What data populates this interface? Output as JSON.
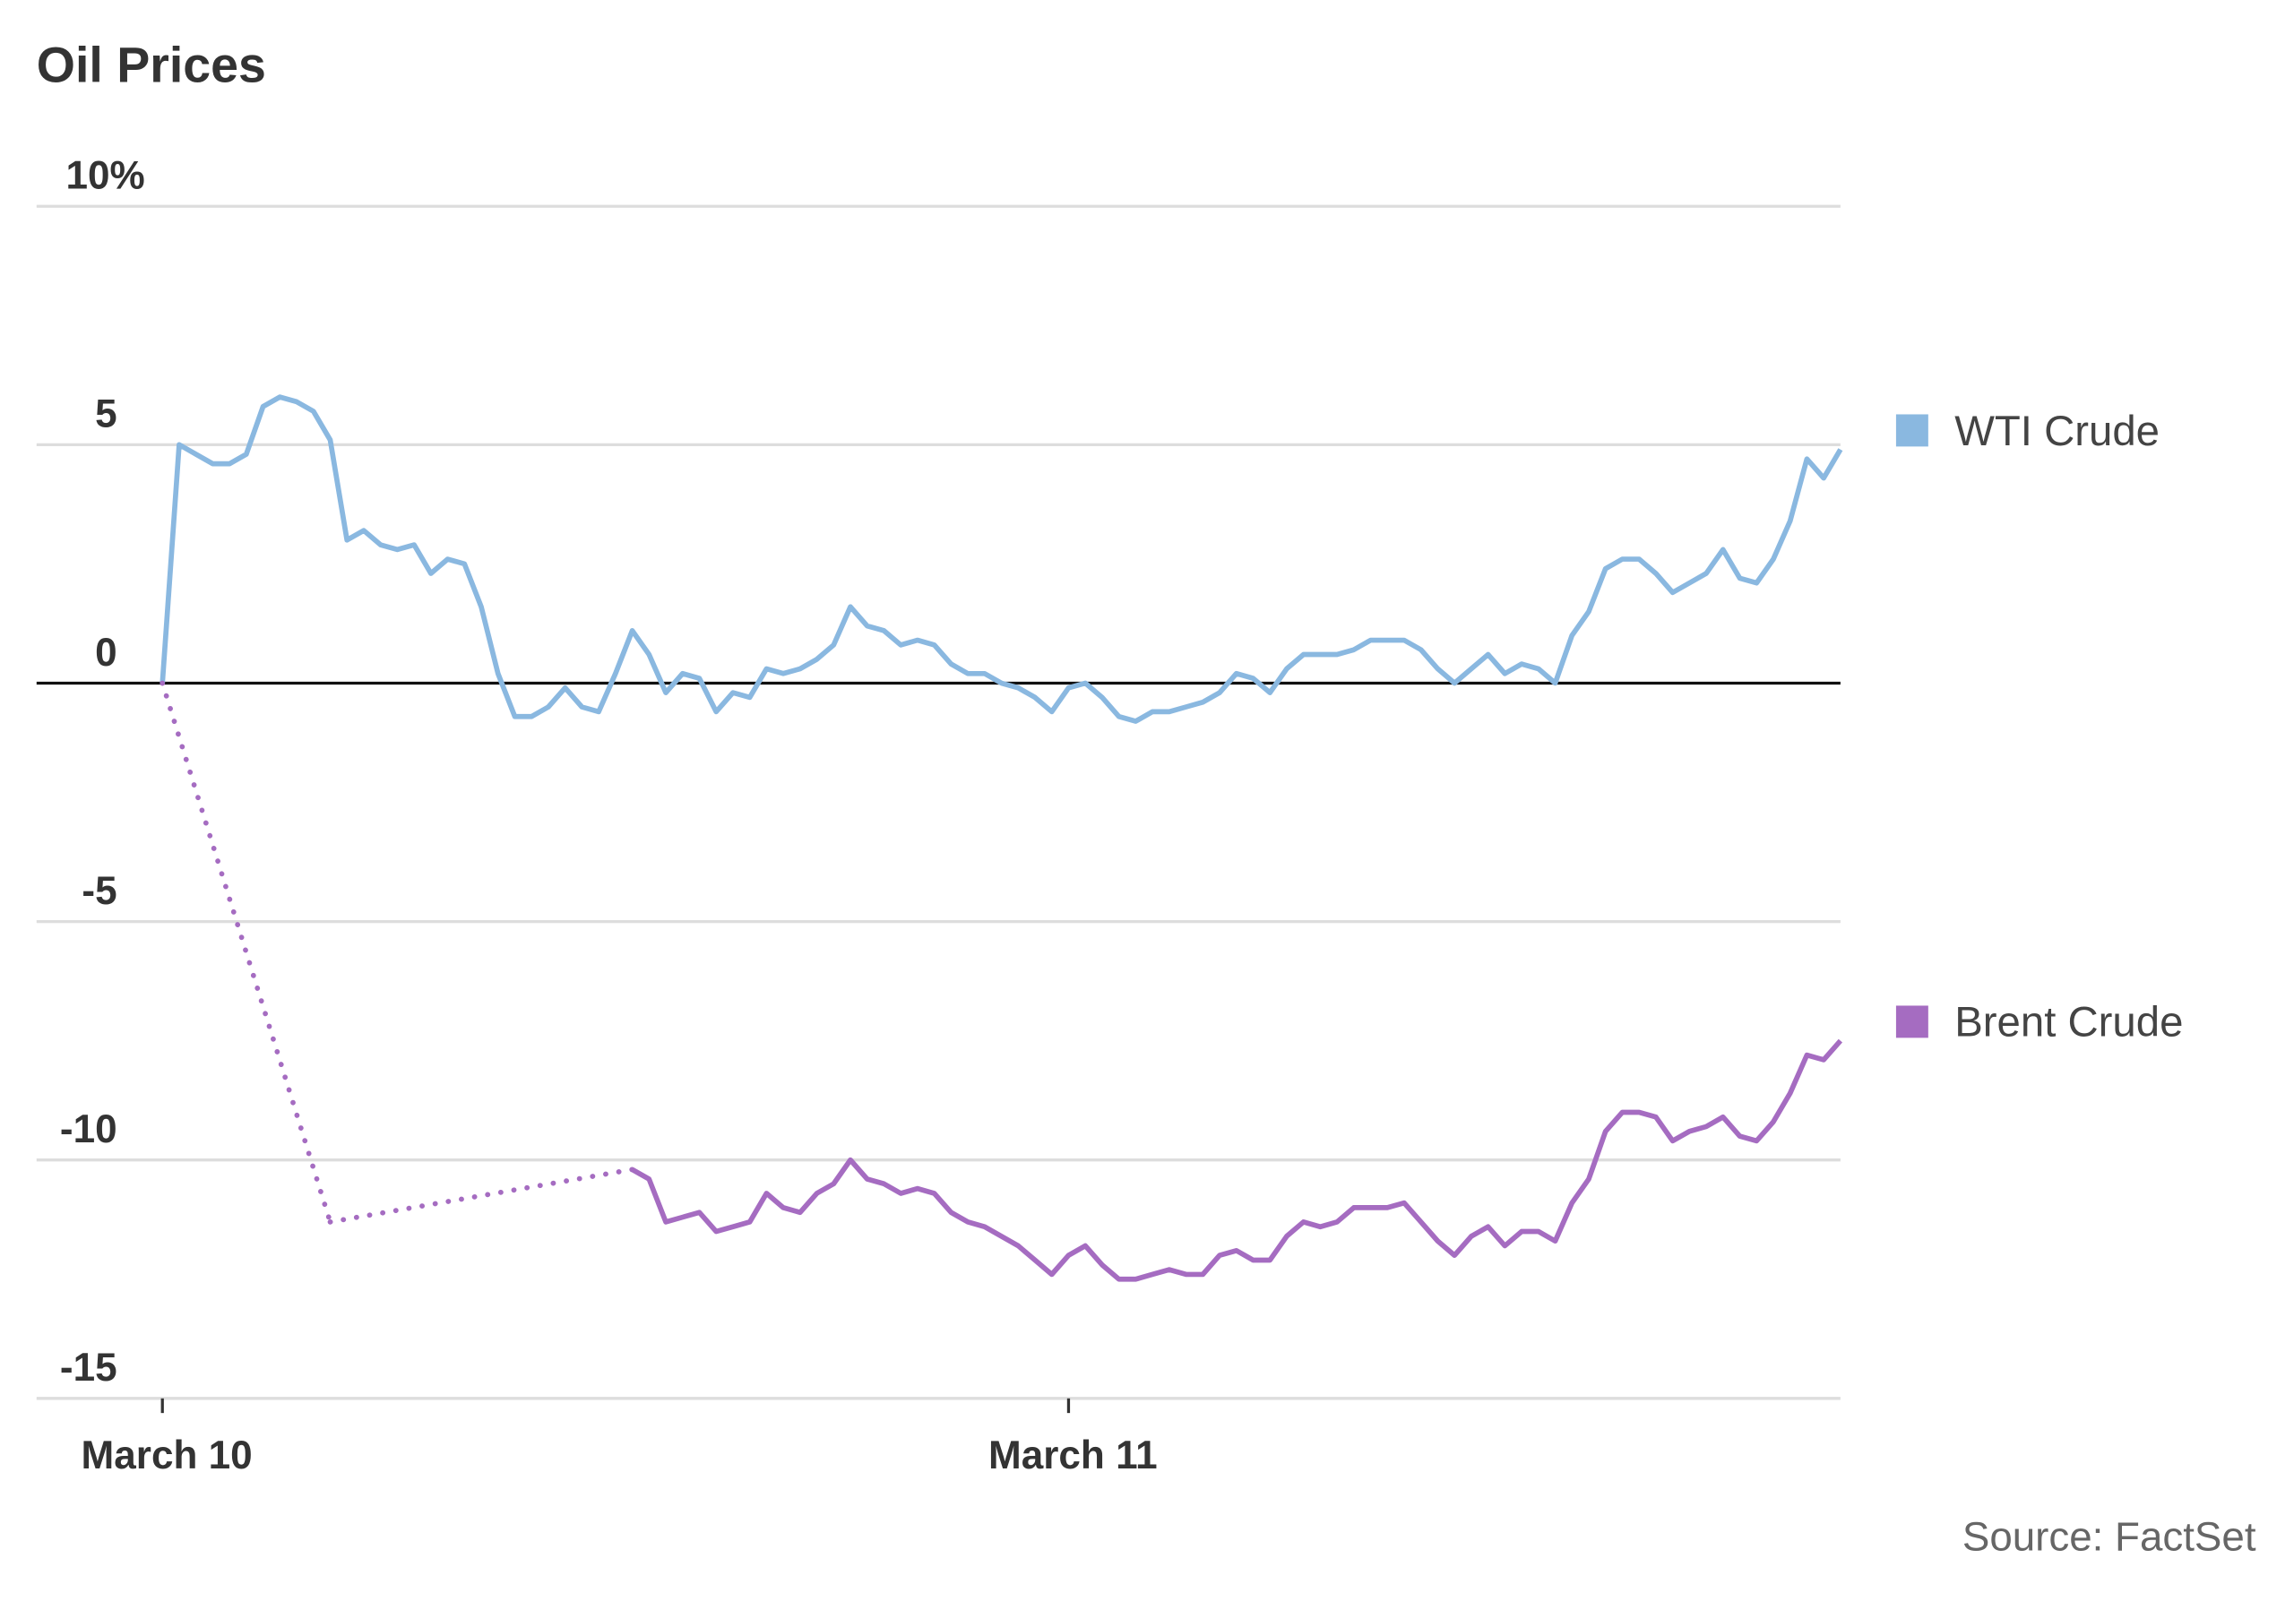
{
  "chart_data": {
    "type": "line",
    "title": "Oil Prices",
    "source": "Source: FactSet",
    "categories": [
      "March 10",
      null,
      null,
      null,
      null,
      null,
      null,
      null,
      null,
      null,
      null,
      null,
      null,
      null,
      null,
      null,
      null,
      null,
      null,
      null,
      null,
      null,
      null,
      null,
      null,
      null,
      null,
      null,
      null,
      null,
      null,
      null,
      null,
      null,
      null,
      null,
      null,
      null,
      null,
      null,
      null,
      null,
      null,
      null,
      null,
      null,
      null,
      null,
      null,
      null,
      null,
      null,
      null,
      null,
      "March 11",
      null,
      null,
      null,
      null,
      null,
      null,
      null,
      null,
      null,
      null,
      null,
      null,
      null,
      null,
      null,
      null,
      null,
      null,
      null,
      null,
      null,
      null,
      null,
      null,
      null,
      null,
      null,
      null,
      null,
      null,
      null,
      null,
      null,
      null,
      null,
      null,
      null,
      null,
      null,
      null,
      null,
      null,
      null,
      null,
      null,
      null
    ],
    "series": [
      {
        "name": "WTI Crude",
        "color": "#8ab8e0",
        "values": [
          0,
          5.0,
          4.8,
          4.6,
          4.6,
          4.8,
          5.8,
          6.0,
          5.9,
          5.7,
          5.1,
          3.0,
          3.2,
          2.9,
          2.8,
          2.9,
          2.3,
          2.6,
          2.5,
          1.6,
          0.2,
          -0.7,
          -0.7,
          -0.5,
          -0.1,
          -0.5,
          -0.6,
          0.2,
          1.1,
          0.6,
          -0.2,
          0.2,
          0.1,
          -0.6,
          -0.2,
          -0.3,
          0.3,
          0.2,
          0.3,
          0.5,
          0.8,
          1.6,
          1.2,
          1.1,
          0.8,
          0.9,
          0.8,
          0.4,
          0.2,
          0.2,
          0.0,
          -0.1,
          -0.3,
          -0.6,
          -0.1,
          0.0,
          -0.3,
          -0.7,
          -0.8,
          -0.6,
          -0.6,
          -0.5,
          -0.4,
          -0.2,
          0.2,
          0.1,
          -0.2,
          0.3,
          0.6,
          0.6,
          0.6,
          0.7,
          0.9,
          0.9,
          0.9,
          0.7,
          0.3,
          0.0,
          0.3,
          0.6,
          0.2,
          0.4,
          0.3,
          0.0,
          1.0,
          1.5,
          2.4,
          2.6,
          2.6,
          2.3,
          1.9,
          2.1,
          2.3,
          2.8,
          2.2,
          2.1,
          2.6,
          3.4,
          4.7,
          4.3,
          4.9
        ]
      },
      {
        "name": "Brent Crude",
        "color": "#a56cc1",
        "values": [
          0,
          null,
          null,
          null,
          null,
          null,
          null,
          null,
          null,
          null,
          -11.3,
          null,
          null,
          null,
          null,
          null,
          null,
          null,
          null,
          null,
          null,
          null,
          null,
          null,
          null,
          null,
          null,
          null,
          -10.2,
          -10.4,
          -11.3,
          -11.2,
          -11.1,
          -11.5,
          -11.4,
          -11.3,
          -10.7,
          -11.0,
          -11.1,
          -10.7,
          -10.5,
          -10.0,
          -10.4,
          -10.5,
          -10.7,
          -10.6,
          -10.7,
          -11.1,
          -11.3,
          -11.4,
          -11.6,
          -11.8,
          -12.1,
          -12.4,
          -12.0,
          -11.8,
          -12.2,
          -12.5,
          -12.5,
          -12.4,
          -12.3,
          -12.4,
          -12.4,
          -12.0,
          -11.9,
          -12.1,
          -12.1,
          -11.6,
          -11.3,
          -11.4,
          -11.3,
          -11.0,
          -11.0,
          -11.0,
          -10.9,
          -11.3,
          -11.7,
          -12.0,
          -11.6,
          -11.4,
          -11.8,
          -11.5,
          -11.5,
          -11.7,
          -10.9,
          -10.4,
          -9.4,
          -9.0,
          -9.0,
          -9.1,
          -9.6,
          -9.4,
          -9.3,
          -9.1,
          -9.5,
          -9.6,
          -9.2,
          -8.6,
          -7.8,
          -7.9,
          -7.5
        ]
      }
    ],
    "ylim": [
      -15,
      10
    ],
    "yticks": [
      -15,
      -10,
      -5,
      0,
      5,
      {
        "value": 10,
        "label": "10%"
      }
    ],
    "grid": true,
    "zero_line": true,
    "gap_line": "dotted",
    "legend": "right"
  }
}
